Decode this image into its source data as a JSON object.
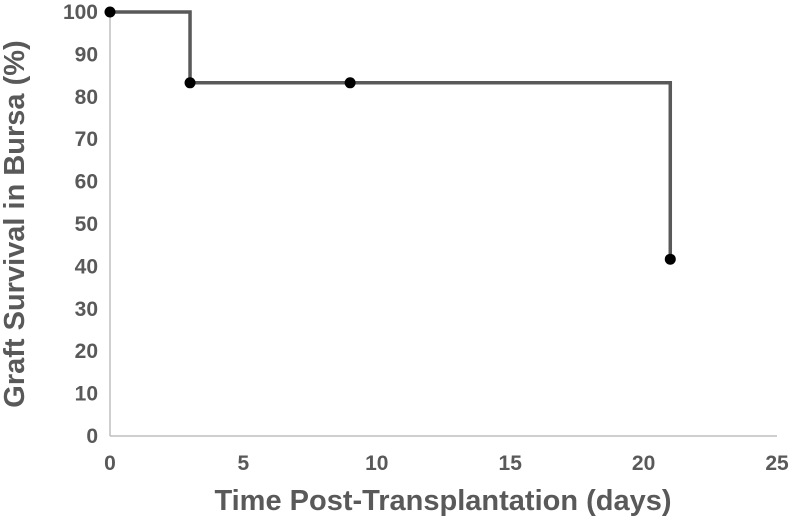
{
  "chart_data": {
    "type": "line",
    "title": "",
    "xlabel": "Time Post-Transplantation (days)",
    "ylabel": "Graft Survival in Bursa (%)",
    "xlim": [
      0,
      25
    ],
    "ylim": [
      0,
      100
    ],
    "x_ticks": [
      "0",
      "5",
      "10",
      "15",
      "20",
      "25"
    ],
    "y_ticks": [
      "0",
      "10",
      "20",
      "30",
      "40",
      "50",
      "60",
      "70",
      "80",
      "90",
      "100"
    ],
    "grid": false,
    "line_style": "step",
    "line_color": "#595959",
    "marker_color": "#000000",
    "axis_color": "#bfbfbf",
    "series": [
      {
        "points": [
          {
            "x": 0,
            "y": 100
          },
          {
            "x": 3,
            "y": 83.3
          },
          {
            "x": 9,
            "y": 83.3
          },
          {
            "x": 21,
            "y": 41.7
          }
        ]
      }
    ]
  }
}
